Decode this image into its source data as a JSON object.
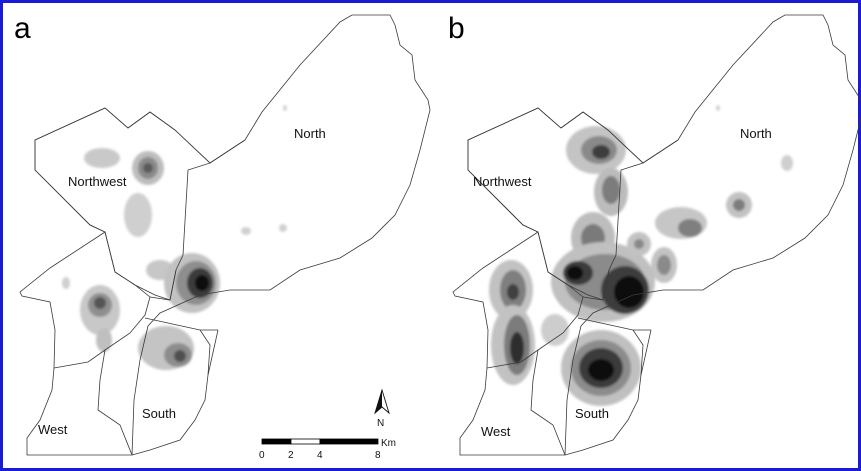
{
  "frame_color": "#1b1bd6",
  "panels": [
    {
      "letter": "a",
      "regions": {
        "north": "North",
        "northwest": "Northwest",
        "west": "West",
        "south": "South"
      },
      "north_arrow": "N",
      "scale_labels": [
        "0",
        "2",
        "4",
        "8"
      ],
      "scale_unit": "Km"
    },
    {
      "letter": "b",
      "regions": {
        "north": "North",
        "northwest": "Northwest",
        "west": "West",
        "south": "South"
      }
    }
  ]
}
